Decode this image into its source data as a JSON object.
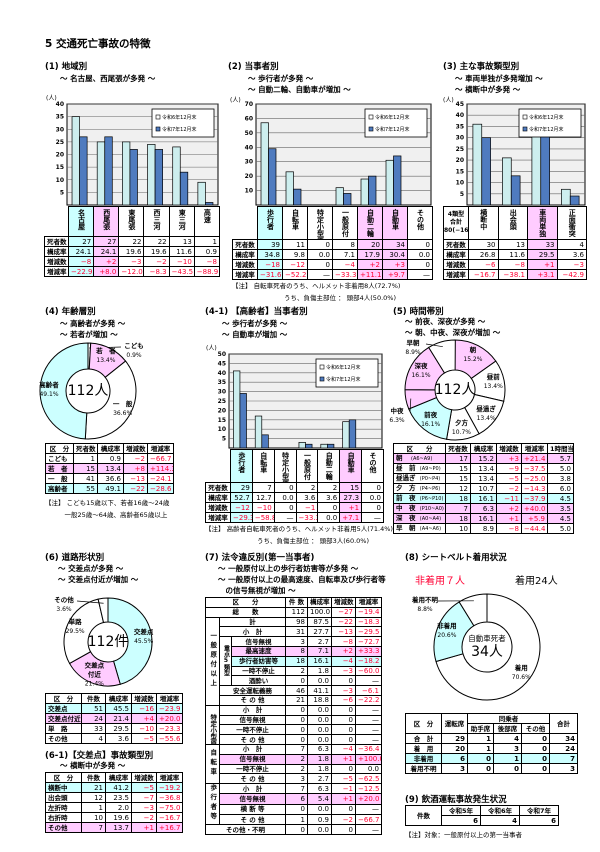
{
  "page_title": "5 交通死亡事故の特徴",
  "legend": [
    "令和6年12月末",
    "令和7年12月末"
  ],
  "colors": {
    "r6": "#cdeeee",
    "r7": "#4f7bbf",
    "cyan": "#ccffff",
    "pink": "#ffccff",
    "red": "#ff0033",
    "grid": "#f0f0f0"
  },
  "row_labels": [
    "死者数",
    "構成率",
    "増減数",
    "増減率"
  ],
  "chart_data": [
    {
      "type": "bar",
      "categories": [
        "名古屋",
        "西尾張",
        "東尾張",
        "西三河",
        "東三河",
        "高速"
      ],
      "highlight": [
        "cyan",
        "pink",
        null,
        null,
        null,
        null
      ],
      "series": [
        {
          "name": "令和6年12月末",
          "values": [
            35,
            25,
            25,
            24,
            23,
            9
          ]
        },
        {
          "name": "令和7年12月末",
          "values": [
            27,
            27,
            22,
            22,
            13,
            1
          ]
        }
      ],
      "ylabel": "(人)",
      "ylim": [
        0,
        40
      ],
      "yticks": [
        5,
        10,
        15,
        20,
        25,
        30,
        35,
        40
      ],
      "legend": "top-right",
      "grid": true
    },
    {
      "type": "bar",
      "categories": [
        "歩行者",
        "自転車",
        "特定小型原付",
        "一般原付",
        "自動二輪",
        "自動車",
        "その他"
      ],
      "highlight": [
        "cyan",
        null,
        null,
        null,
        "pink",
        "pink",
        null
      ],
      "series": [
        {
          "name": "令和6年12月末",
          "values": [
            57,
            23,
            0,
            12,
            18,
            31,
            0
          ]
        },
        {
          "name": "令和7年12月末",
          "values": [
            39,
            11,
            0,
            8,
            20,
            34,
            0
          ]
        }
      ],
      "ylabel": "(人)",
      "ylim": [
        0,
        70
      ],
      "yticks": [
        10,
        20,
        30,
        40,
        50,
        60,
        70
      ],
      "legend": "top-right",
      "grid": true
    },
    {
      "type": "bar",
      "categories": [
        "横断中",
        "出会頭",
        "車両単独",
        "正面衝突"
      ],
      "highlight": [
        null,
        null,
        "pink",
        null
      ],
      "series": [
        {
          "name": "令和6年12月末",
          "values": [
            36,
            21,
            32,
            7
          ]
        },
        {
          "name": "令和7年12月末",
          "values": [
            30,
            13,
            33,
            4
          ]
        }
      ],
      "ylabel": "(人)",
      "ylim": [
        0,
        45
      ],
      "yticks": [
        5,
        10,
        15,
        20,
        25,
        30,
        35,
        40,
        45
      ],
      "legend": "top-right",
      "grid": true
    },
    {
      "type": "bar",
      "categories": [
        "歩行者",
        "自転車",
        "特定小型原付",
        "一般原付",
        "自動二輪",
        "自動車",
        "その他"
      ],
      "highlight": [
        "cyan",
        null,
        null,
        null,
        null,
        "pink",
        null
      ],
      "series": [
        {
          "name": "令和6年12月末",
          "values": [
            41,
            17,
            0,
            3,
            2,
            14,
            0
          ]
        },
        {
          "name": "令和7年12月末",
          "values": [
            29,
            7,
            0,
            2,
            2,
            15,
            0
          ]
        }
      ],
      "ylabel": "(人)",
      "ylim": [
        0,
        50
      ],
      "yticks": [
        5,
        10,
        15,
        20,
        25,
        30,
        35,
        40,
        45,
        50
      ],
      "legend": "top-right",
      "grid": true
    }
  ],
  "s1": {
    "heading": "(1) 地域別",
    "subtitles": [
      "～ 名古屋、西尾張が多発 ～"
    ],
    "table": [
      [
        "27",
        "27",
        "22",
        "22",
        "13",
        "1"
      ],
      [
        "24.1",
        "24.1",
        "19.6",
        "19.6",
        "11.6",
        "0.9"
      ],
      [
        "−8",
        "+2",
        "−3",
        "−2",
        "−10",
        "−8"
      ],
      [
        "−22.9",
        "+8.0",
        "−12.0",
        "−8.3",
        "−43.5",
        "−88.9"
      ]
    ]
  },
  "s2": {
    "heading": "(2) 当事者別",
    "subtitles": [
      "～ 歩行者が多発 ～",
      "～ 自動二輪、自動車が増加 ～"
    ],
    "table": [
      [
        "39",
        "11",
        "0",
        "8",
        "20",
        "34",
        "0"
      ],
      [
        "34.8",
        "9.8",
        "0.0",
        "7.1",
        "17.9",
        "30.4",
        "0.0"
      ],
      [
        "−18",
        "−12",
        "0",
        "−4",
        "+2",
        "+3",
        "0"
      ],
      [
        "−31.6",
        "−52.2",
        "—",
        "−33.3",
        "+11.1",
        "+9.7",
        "—"
      ]
    ],
    "note": "【注】 自転車死者のうち、ヘルメット非着用8人(72.7%)\n　　　　　　　　うち、負傷主部位 ： 頭部4人(50.0%)"
  },
  "s3": {
    "heading": "(3) 主な事故類型別",
    "subtitles": [
      "～ 車両単独が多発増加 ～",
      "～ 横断中が多発 ～"
    ],
    "total_label": "4類型\n合計\n80(−16)",
    "table": [
      [
        "30",
        "13",
        "33",
        "4"
      ],
      [
        "26.8",
        "11.6",
        "29.5",
        "3.6"
      ],
      [
        "−6",
        "−8",
        "+1",
        "−3"
      ],
      [
        "−16.7",
        "−38.1",
        "+3.1",
        "−42.9"
      ]
    ]
  },
  "s4": {
    "heading": "(4) 年齢層別",
    "subtitles": [
      "～ 高齢者が多発 ～",
      "～ 若者が増加 ～"
    ],
    "center": "112人",
    "segments": [
      {
        "label": "こども",
        "pct": 0.9,
        "color": "#ffffff",
        "outside": true
      },
      {
        "label": "若　者",
        "pct": 13.4,
        "color": "#ffccff"
      },
      {
        "label": "一　般",
        "pct": 36.6,
        "color": "#ffffff"
      },
      {
        "label": "高齢者",
        "pct": 49.1,
        "color": "#ccffff"
      }
    ],
    "headers": [
      "区　分",
      "死者数",
      "構成率",
      "増減数",
      "増減率"
    ],
    "rows": [
      {
        "cells": [
          "こども",
          "1",
          "0.9",
          "−2",
          "−66.7"
        ]
      },
      {
        "cells": [
          "若　者",
          "15",
          "13.4",
          "+8",
          "+114.3"
        ],
        "hl": "pink"
      },
      {
        "cells": [
          "一　般",
          "41",
          "36.6",
          "−13",
          "−24.1"
        ]
      },
      {
        "cells": [
          "高齢者",
          "55",
          "49.1",
          "−22",
          "−28.6"
        ],
        "hl": "cyan"
      }
    ],
    "note": "【注】 こども15歳以下、若者16歳～24歳\n　　　一般25歳～64歳、高齢者65歳以上"
  },
  "s41": {
    "heading": "(4-1) 【高齢者】当事者別",
    "subtitles": [
      "～ 歩行者が多発 ～",
      "～ 自動車が増加 ～"
    ],
    "table": [
      [
        "29",
        "7",
        "0",
        "2",
        "2",
        "15",
        "0"
      ],
      [
        "52.7",
        "12.7",
        "0.0",
        "3.6",
        "3.6",
        "27.3",
        "0.0"
      ],
      [
        "−12",
        "−10",
        "0",
        "−1",
        "0",
        "+1",
        "0"
      ],
      [
        "−29.3",
        "−58.8",
        "—",
        "−33.3",
        "0.0",
        "+7.1",
        "—"
      ]
    ],
    "note": "【注】 高齢者自転車死者のうち、ヘルメット非着用5人(71.4%)\n　　　　　　　　うち、負傷主部位 ： 頭部3人(60.0%)"
  },
  "s5": {
    "heading": "(5) 時間帯別",
    "subtitles": [
      "～ 前夜、深夜が多発 ～",
      "～ 朝、中夜、深夜が増加 ～"
    ],
    "center": "112人",
    "segments": [
      {
        "label": "朝",
        "pct": 15.2,
        "color": "#ffccff"
      },
      {
        "label": "昼前",
        "pct": 13.4,
        "color": "#ffffff"
      },
      {
        "label": "昼過ぎ",
        "pct": 13.4,
        "color": "#ffffff"
      },
      {
        "label": "夕方",
        "pct": 10.7,
        "color": "#ffffff"
      },
      {
        "label": "前夜",
        "pct": 16.1,
        "color": "#ccffff"
      },
      {
        "label": "中夜",
        "pct": 6.3,
        "color": "#ffccff",
        "outside": true
      },
      {
        "label": "深夜",
        "pct": 16.1,
        "color": "#ffccff"
      },
      {
        "label": "早朝",
        "pct": 8.9,
        "color": "#ffffff",
        "outside": true
      }
    ],
    "headers": [
      "区　　分",
      "死者数",
      "構成率",
      "増減数",
      "増減率",
      "1時間当"
    ],
    "rows": [
      {
        "cells": [
          "朝　(A6~A9)",
          "17",
          "15.2",
          "+3",
          "+21.4",
          "5.7"
        ],
        "hl": "pink"
      },
      {
        "cells": [
          "昼　前 (A9~P0)",
          "15",
          "13.4",
          "−9",
          "−37.5",
          "5.0"
        ]
      },
      {
        "cells": [
          "昼過ぎ (P0~P4)",
          "15",
          "13.4",
          "−5",
          "−25.0",
          "3.8"
        ]
      },
      {
        "cells": [
          "夕　方 (P4~P6)",
          "12",
          "10.7",
          "−2",
          "−14.3",
          "6.0"
        ]
      },
      {
        "cells": [
          "前　夜 (P6~P10)",
          "18",
          "16.1",
          "−11",
          "−37.9",
          "4.5"
        ],
        "hl": "cyan"
      },
      {
        "cells": [
          "中　夜 (P10~A0)",
          "7",
          "6.3",
          "+2",
          "+40.0",
          "3.5"
        ],
        "hl": "pink"
      },
      {
        "cells": [
          "深　夜 (A0~A4)",
          "18",
          "16.1",
          "+1",
          "+5.9",
          "4.5"
        ],
        "hl": "pink"
      },
      {
        "cells": [
          "早　朝 (A4~A6)",
          "10",
          "8.9",
          "−8",
          "−44.4",
          "5.0"
        ]
      }
    ]
  },
  "s6": {
    "heading": "(6) 道路形状別",
    "subtitles": [
      "～ 交差点が多発 ～",
      "～ 交差点付近が増加 ～"
    ],
    "center": "112件",
    "segments": [
      {
        "label": "交差点",
        "pct": 45.5,
        "color": "#ccffff"
      },
      {
        "label": "交差点\n付近",
        "pct": 21.4,
        "color": "#ffccff"
      },
      {
        "label": "単路",
        "pct": 29.5,
        "color": "#ffffff"
      },
      {
        "label": "その他",
        "pct": 3.6,
        "color": "#ffffff",
        "outside": true
      }
    ],
    "headers": [
      "区　分",
      "件数",
      "構成率",
      "増減数",
      "増減率"
    ],
    "rows": [
      {
        "cells": [
          "交差点",
          "51",
          "45.5",
          "−16",
          "−23.9"
        ],
        "hl": "cyan"
      },
      {
        "cells": [
          "交差点付近",
          "24",
          "21.4",
          "+4",
          "+20.0"
        ],
        "hl": "pink"
      },
      {
        "cells": [
          "単　路",
          "33",
          "29.5",
          "−10",
          "−23.3"
        ]
      },
      {
        "cells": [
          "その他",
          "4",
          "3.6",
          "−5",
          "−55.6"
        ]
      }
    ]
  },
  "s61": {
    "heading": "(6-1)【交差点】事故類型別",
    "subtitles": [
      "～ 横断中が多発 ～"
    ],
    "headers": [
      "区　分",
      "件数",
      "構成率",
      "増減数",
      "増減率"
    ],
    "rows": [
      {
        "cells": [
          "横断中",
          "21",
          "41.2",
          "−5",
          "−19.2"
        ],
        "hl": "cyan"
      },
      {
        "cells": [
          "出会頭",
          "12",
          "23.5",
          "−7",
          "−36.8"
        ]
      },
      {
        "cells": [
          "左折時",
          "1",
          "2.0",
          "−3",
          "−75.0"
        ]
      },
      {
        "cells": [
          "右折時",
          "10",
          "19.6",
          "−2",
          "−16.7"
        ]
      },
      {
        "cells": [
          "その他",
          "7",
          "13.7",
          "+1",
          "+16.7"
        ],
        "hl": "pink"
      }
    ]
  },
  "s7": {
    "heading": "(7) 法令違反別(第一当事者)",
    "subtitles": [
      "～ 一般原付以上の歩行者妨害等が多発 ～",
      "～ 一般原付以上の最高速度、自転車及び歩行者等",
      "　の信号無視が増加 ～"
    ],
    "headers": [
      "区　　分",
      "件 数",
      "構成率",
      "増減数",
      "増減率"
    ],
    "rows": [
      {
        "g": "",
        "s": "",
        "label": "総　　数",
        "v": [
          "112",
          "100.0",
          "−27",
          "−19.4"
        ]
      },
      {
        "g": "一般原付以上",
        "s": "",
        "label": "計",
        "v": [
          "98",
          "87.5",
          "−22",
          "−18.3"
        ]
      },
      {
        "g": "一般原付以上",
        "s": "",
        "label": "小　計",
        "v": [
          "31",
          "27.7",
          "−13",
          "−29.5"
        ]
      },
      {
        "g": "一般原付以上",
        "s": "重点5類型",
        "label": "信号無視",
        "v": [
          "3",
          "2.7",
          "−8",
          "−72.7"
        ]
      },
      {
        "g": "一般原付以上",
        "s": "重点5類型",
        "label": "最高速度",
        "v": [
          "8",
          "7.1",
          "+2",
          "+33.3"
        ],
        "hl": "pink"
      },
      {
        "g": "一般原付以上",
        "s": "重点5類型",
        "label": "歩行者妨害等",
        "v": [
          "18",
          "16.1",
          "−4",
          "−18.2"
        ],
        "hl": "cyan"
      },
      {
        "g": "一般原付以上",
        "s": "重点5類型",
        "label": "一時不停止",
        "v": [
          "2",
          "1.8",
          "−3",
          "−60.0"
        ]
      },
      {
        "g": "一般原付以上",
        "s": "重点5類型",
        "label": "酒酔い",
        "v": [
          "0",
          "0.0",
          "0",
          "—"
        ]
      },
      {
        "g": "一般原付以上",
        "s": "",
        "label": "安全運転義務",
        "v": [
          "46",
          "41.1",
          "−3",
          "−6.1"
        ]
      },
      {
        "g": "一般原付以上",
        "s": "",
        "label": "そ の 他",
        "v": [
          "21",
          "18.8",
          "−6",
          "−22.2"
        ]
      },
      {
        "g": "特定小型原付",
        "s": "",
        "label": "小　計",
        "v": [
          "0",
          "0.0",
          "0",
          "—"
        ]
      },
      {
        "g": "特定小型原付",
        "s": "",
        "label": "信号無視",
        "v": [
          "0",
          "0.0",
          "0",
          "—"
        ]
      },
      {
        "g": "特定小型原付",
        "s": "",
        "label": "一時不停止",
        "v": [
          "0",
          "0.0",
          "0",
          "—"
        ]
      },
      {
        "g": "特定小型原付",
        "s": "",
        "label": "そ の 他",
        "v": [
          "0",
          "0.0",
          "0",
          "—"
        ]
      },
      {
        "g": "自転車",
        "s": "",
        "label": "小　計",
        "v": [
          "7",
          "6.3",
          "−4",
          "−36.4"
        ]
      },
      {
        "g": "自転車",
        "s": "",
        "label": "信号無視",
        "v": [
          "2",
          "1.8",
          "+1",
          "+100.0"
        ],
        "hl": "pink"
      },
      {
        "g": "自転車",
        "s": "",
        "label": "一時不停止",
        "v": [
          "2",
          "1.8",
          "0",
          "0.0"
        ]
      },
      {
        "g": "自転車",
        "s": "",
        "label": "そ の 他",
        "v": [
          "3",
          "2.7",
          "−5",
          "−62.5"
        ]
      },
      {
        "g": "歩行者等",
        "s": "",
        "label": "小　計",
        "v": [
          "7",
          "6.3",
          "−1",
          "−12.5"
        ]
      },
      {
        "g": "歩行者等",
        "s": "",
        "label": "信号無視",
        "v": [
          "6",
          "5.4",
          "+1",
          "+20.0"
        ],
        "hl": "pink"
      },
      {
        "g": "歩行者等",
        "s": "",
        "label": "横 断 等",
        "v": [
          "0",
          "0.0",
          "0",
          "—"
        ]
      },
      {
        "g": "歩行者等",
        "s": "",
        "label": "そ の 他",
        "v": [
          "1",
          "0.9",
          "−2",
          "−66.7"
        ]
      },
      {
        "g": "",
        "s": "",
        "label": "その他・不明",
        "v": [
          "0",
          "0.0",
          "0",
          "—"
        ]
      }
    ]
  },
  "s8": {
    "heading": "(8) シートベルト着用状況",
    "left_caption": "非着用７人",
    "right_caption": "着用24人",
    "center_top": "自動車死者",
    "center": "34人",
    "segments": [
      {
        "label": "着用",
        "pct": 70.6,
        "color": "#ffffff"
      },
      {
        "label": "非着用",
        "pct": 20.6,
        "color": "#ccffff"
      },
      {
        "label": "着用不明",
        "pct": 8.8,
        "color": "#ffffff",
        "outside": true
      }
    ],
    "headers": [
      "区　分",
      "運転席",
      "同乗者",
      "合計"
    ],
    "sub_headers": [
      "助手席",
      "後部席",
      "その他"
    ],
    "rows": [
      {
        "cells": [
          "合　計",
          "29",
          "1",
          "4",
          "0",
          "34"
        ]
      },
      {
        "cells": [
          "着　用",
          "20",
          "1",
          "3",
          "0",
          "24"
        ]
      },
      {
        "cells": [
          "非着用",
          "6",
          "0",
          "1",
          "0",
          "7"
        ],
        "hl": "cyan"
      },
      {
        "cells": [
          "着用不明",
          "3",
          "0",
          "0",
          "0",
          "3"
        ]
      }
    ]
  },
  "s9": {
    "heading": "(9) 飲酒運転事故発生状況",
    "row_label": "件数",
    "years": [
      "令和5年",
      "令和6年",
      "令和7年"
    ],
    "values": [
      "6",
      "4",
      "6"
    ],
    "note": "【注】対象：一般原付以上の第一当事者"
  }
}
